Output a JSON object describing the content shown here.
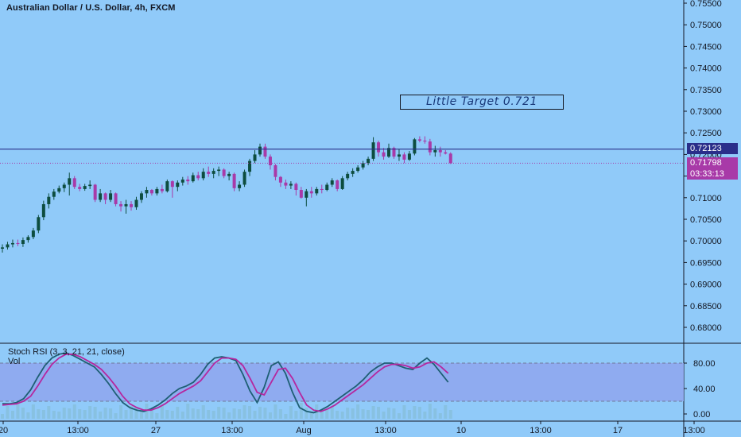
{
  "header": {
    "title": "Australian Dollar / U.S. Dollar, 4h, FXCM"
  },
  "annotation": {
    "text": "Little Target 0.721"
  },
  "indicator": {
    "title": "Stoch RSI (3, 3, 21, 21, close)",
    "vol_label": "Vol"
  },
  "price_tags": {
    "horizontal_line": "0.72123",
    "last_price": "0.71798",
    "countdown": "03:33:13"
  },
  "colors": {
    "background": "#90caf9",
    "up_candle": "#0d4d3f",
    "down_candle": "#a83aa8",
    "line": "#2a2e8a",
    "k_line": "#1e5f74",
    "d_line": "#b5279f",
    "band": "#8fa6ee"
  },
  "chart_data": [
    {
      "type": "candlestick",
      "title": "Australian Dollar / U.S. Dollar, 4h, FXCM",
      "ylim": [
        0.6775,
        0.756
      ],
      "y_ticks": [
        "0.75500",
        "0.75000",
        "0.74500",
        "0.74000",
        "0.73500",
        "0.73000",
        "0.72500",
        "0.72000",
        "0.71500",
        "0.71000",
        "0.70500",
        "0.70000",
        "0.69500",
        "0.69000",
        "0.68500",
        "0.68000"
      ],
      "x_ticks": [
        "20",
        "13:00",
        "27",
        "13:00",
        "Aug",
        "13:00",
        "10",
        "13:00",
        "17",
        "13:00"
      ],
      "horizontal_line": 0.72123,
      "last_price": 0.71798,
      "series": [
        {
          "o": 0.6982,
          "h": 0.6992,
          "l": 0.6973,
          "c": 0.6985
        },
        {
          "o": 0.6985,
          "h": 0.6998,
          "l": 0.698,
          "c": 0.6992
        },
        {
          "o": 0.6992,
          "h": 0.7003,
          "l": 0.6985,
          "c": 0.6995
        },
        {
          "o": 0.6995,
          "h": 0.7003,
          "l": 0.6988,
          "c": 0.6993
        },
        {
          "o": 0.6993,
          "h": 0.7008,
          "l": 0.6986,
          "c": 0.7002
        },
        {
          "o": 0.7002,
          "h": 0.7013,
          "l": 0.6996,
          "c": 0.7009
        },
        {
          "o": 0.7009,
          "h": 0.703,
          "l": 0.7004,
          "c": 0.7024
        },
        {
          "o": 0.7024,
          "h": 0.706,
          "l": 0.7018,
          "c": 0.7055
        },
        {
          "o": 0.7055,
          "h": 0.7093,
          "l": 0.7048,
          "c": 0.7085
        },
        {
          "o": 0.7085,
          "h": 0.711,
          "l": 0.7075,
          "c": 0.7102
        },
        {
          "o": 0.7102,
          "h": 0.712,
          "l": 0.7095,
          "c": 0.7114
        },
        {
          "o": 0.7114,
          "h": 0.7128,
          "l": 0.711,
          "c": 0.7122
        },
        {
          "o": 0.7122,
          "h": 0.7135,
          "l": 0.7113,
          "c": 0.713
        },
        {
          "o": 0.713,
          "h": 0.7158,
          "l": 0.7105,
          "c": 0.7145
        },
        {
          "o": 0.7145,
          "h": 0.715,
          "l": 0.712,
          "c": 0.7125
        },
        {
          "o": 0.7125,
          "h": 0.7132,
          "l": 0.7115,
          "c": 0.712
        },
        {
          "o": 0.712,
          "h": 0.7132,
          "l": 0.7116,
          "c": 0.7127
        },
        {
          "o": 0.7127,
          "h": 0.714,
          "l": 0.712,
          "c": 0.713
        },
        {
          "o": 0.713,
          "h": 0.7132,
          "l": 0.709,
          "c": 0.7095
        },
        {
          "o": 0.7095,
          "h": 0.712,
          "l": 0.709,
          "c": 0.711
        },
        {
          "o": 0.711,
          "h": 0.7112,
          "l": 0.7085,
          "c": 0.7095
        },
        {
          "o": 0.7095,
          "h": 0.7118,
          "l": 0.709,
          "c": 0.711
        },
        {
          "o": 0.711,
          "h": 0.7112,
          "l": 0.708,
          "c": 0.7085
        },
        {
          "o": 0.7085,
          "h": 0.7092,
          "l": 0.7068,
          "c": 0.708
        },
        {
          "o": 0.708,
          "h": 0.7095,
          "l": 0.7063,
          "c": 0.7085
        },
        {
          "o": 0.7085,
          "h": 0.7092,
          "l": 0.707,
          "c": 0.7078
        },
        {
          "o": 0.7078,
          "h": 0.7102,
          "l": 0.7072,
          "c": 0.7095
        },
        {
          "o": 0.7095,
          "h": 0.7115,
          "l": 0.7088,
          "c": 0.711
        },
        {
          "o": 0.711,
          "h": 0.7125,
          "l": 0.71,
          "c": 0.7118
        },
        {
          "o": 0.7118,
          "h": 0.712,
          "l": 0.7105,
          "c": 0.711
        },
        {
          "o": 0.711,
          "h": 0.7125,
          "l": 0.7105,
          "c": 0.712
        },
        {
          "o": 0.712,
          "h": 0.713,
          "l": 0.711,
          "c": 0.7115
        },
        {
          "o": 0.7115,
          "h": 0.7142,
          "l": 0.7112,
          "c": 0.7138
        },
        {
          "o": 0.7138,
          "h": 0.714,
          "l": 0.71,
          "c": 0.7125
        },
        {
          "o": 0.7125,
          "h": 0.714,
          "l": 0.7115,
          "c": 0.7135
        },
        {
          "o": 0.7135,
          "h": 0.7148,
          "l": 0.7128,
          "c": 0.7142
        },
        {
          "o": 0.7142,
          "h": 0.715,
          "l": 0.713,
          "c": 0.7138
        },
        {
          "o": 0.7138,
          "h": 0.7158,
          "l": 0.7135,
          "c": 0.7152
        },
        {
          "o": 0.7152,
          "h": 0.716,
          "l": 0.714,
          "c": 0.7145
        },
        {
          "o": 0.7145,
          "h": 0.7168,
          "l": 0.714,
          "c": 0.716
        },
        {
          "o": 0.716,
          "h": 0.7172,
          "l": 0.7148,
          "c": 0.7155
        },
        {
          "o": 0.7155,
          "h": 0.7168,
          "l": 0.7145,
          "c": 0.7162
        },
        {
          "o": 0.7162,
          "h": 0.7172,
          "l": 0.715,
          "c": 0.7165
        },
        {
          "o": 0.7165,
          "h": 0.7168,
          "l": 0.7145,
          "c": 0.715
        },
        {
          "o": 0.715,
          "h": 0.716,
          "l": 0.714,
          "c": 0.7155
        },
        {
          "o": 0.7155,
          "h": 0.7158,
          "l": 0.7115,
          "c": 0.7122
        },
        {
          "o": 0.7122,
          "h": 0.7138,
          "l": 0.7115,
          "c": 0.713
        },
        {
          "o": 0.713,
          "h": 0.7165,
          "l": 0.7125,
          "c": 0.716
        },
        {
          "o": 0.716,
          "h": 0.719,
          "l": 0.715,
          "c": 0.7185
        },
        {
          "o": 0.7185,
          "h": 0.721,
          "l": 0.718,
          "c": 0.72
        },
        {
          "o": 0.72,
          "h": 0.7225,
          "l": 0.7195,
          "c": 0.7218
        },
        {
          "o": 0.7218,
          "h": 0.7225,
          "l": 0.719,
          "c": 0.7195
        },
        {
          "o": 0.7195,
          "h": 0.72,
          "l": 0.7165,
          "c": 0.7175
        },
        {
          "o": 0.7175,
          "h": 0.7178,
          "l": 0.714,
          "c": 0.7148
        },
        {
          "o": 0.7148,
          "h": 0.715,
          "l": 0.7125,
          "c": 0.7135
        },
        {
          "o": 0.7135,
          "h": 0.7142,
          "l": 0.712,
          "c": 0.7128
        },
        {
          "o": 0.7128,
          "h": 0.7138,
          "l": 0.712,
          "c": 0.7132
        },
        {
          "o": 0.7132,
          "h": 0.7135,
          "l": 0.7105,
          "c": 0.7118
        },
        {
          "o": 0.7118,
          "h": 0.7125,
          "l": 0.7098,
          "c": 0.71
        },
        {
          "o": 0.71,
          "h": 0.712,
          "l": 0.708,
          "c": 0.7115
        },
        {
          "o": 0.7115,
          "h": 0.7125,
          "l": 0.71,
          "c": 0.711
        },
        {
          "o": 0.711,
          "h": 0.7125,
          "l": 0.7105,
          "c": 0.712
        },
        {
          "o": 0.712,
          "h": 0.713,
          "l": 0.711,
          "c": 0.7118
        },
        {
          "o": 0.7118,
          "h": 0.7135,
          "l": 0.7115,
          "c": 0.713
        },
        {
          "o": 0.713,
          "h": 0.7145,
          "l": 0.7125,
          "c": 0.714
        },
        {
          "o": 0.714,
          "h": 0.7142,
          "l": 0.7115,
          "c": 0.712
        },
        {
          "o": 0.712,
          "h": 0.715,
          "l": 0.7118,
          "c": 0.7145
        },
        {
          "o": 0.7145,
          "h": 0.716,
          "l": 0.714,
          "c": 0.7155
        },
        {
          "o": 0.7155,
          "h": 0.7168,
          "l": 0.7148,
          "c": 0.7162
        },
        {
          "o": 0.7162,
          "h": 0.7175,
          "l": 0.7158,
          "c": 0.717
        },
        {
          "o": 0.717,
          "h": 0.7185,
          "l": 0.7165,
          "c": 0.718
        },
        {
          "o": 0.718,
          "h": 0.7195,
          "l": 0.7175,
          "c": 0.719
        },
        {
          "o": 0.719,
          "h": 0.724,
          "l": 0.7185,
          "c": 0.7228
        },
        {
          "o": 0.7228,
          "h": 0.7232,
          "l": 0.7195,
          "c": 0.7205
        },
        {
          "o": 0.7205,
          "h": 0.7215,
          "l": 0.7188,
          "c": 0.7195
        },
        {
          "o": 0.7195,
          "h": 0.7225,
          "l": 0.7192,
          "c": 0.7215
        },
        {
          "o": 0.7215,
          "h": 0.7218,
          "l": 0.719,
          "c": 0.7195
        },
        {
          "o": 0.7195,
          "h": 0.7212,
          "l": 0.7185,
          "c": 0.72
        },
        {
          "o": 0.72,
          "h": 0.7205,
          "l": 0.718,
          "c": 0.7188
        },
        {
          "o": 0.7188,
          "h": 0.7208,
          "l": 0.7185,
          "c": 0.7202
        },
        {
          "o": 0.7202,
          "h": 0.7238,
          "l": 0.7198,
          "c": 0.7235
        },
        {
          "o": 0.7235,
          "h": 0.7242,
          "l": 0.7228,
          "c": 0.7232
        },
        {
          "o": 0.7232,
          "h": 0.7242,
          "l": 0.7225,
          "c": 0.723
        },
        {
          "o": 0.723,
          "h": 0.7236,
          "l": 0.7198,
          "c": 0.7205
        },
        {
          "o": 0.7205,
          "h": 0.722,
          "l": 0.7195,
          "c": 0.721
        },
        {
          "o": 0.721,
          "h": 0.7218,
          "l": 0.7195,
          "c": 0.7205
        },
        {
          "o": 0.7205,
          "h": 0.721,
          "l": 0.72,
          "c": 0.7202
        },
        {
          "o": 0.7202,
          "h": 0.7205,
          "l": 0.7178,
          "c": 0.71798
        }
      ]
    },
    {
      "type": "line",
      "title": "Stoch RSI (3, 3, 21, 21, close)",
      "ylim": [
        -9,
        100
      ],
      "y_ticks": [
        "80.00",
        "40.00",
        "0.00"
      ],
      "band": [
        20,
        80
      ],
      "series": [
        {
          "name": "K",
          "values": [
            16,
            16,
            18,
            24,
            38,
            58,
            76,
            88,
            94,
            96,
            92,
            86,
            80,
            74,
            62,
            48,
            32,
            18,
            10,
            6,
            4,
            8,
            14,
            22,
            32,
            40,
            44,
            50,
            62,
            78,
            88,
            90,
            88,
            84,
            62,
            36,
            18,
            42,
            76,
            82,
            64,
            34,
            10,
            4,
            2,
            6,
            12,
            20,
            28,
            36,
            44,
            54,
            66,
            74,
            80,
            80,
            76,
            72,
            70,
            80,
            88,
            78,
            64,
            50
          ]
        },
        {
          "name": "D",
          "values": [
            14,
            15,
            16,
            20,
            28,
            44,
            62,
            78,
            88,
            94,
            94,
            90,
            84,
            78,
            70,
            58,
            44,
            28,
            16,
            10,
            6,
            6,
            10,
            16,
            24,
            32,
            38,
            44,
            52,
            66,
            80,
            88,
            88,
            86,
            76,
            56,
            34,
            30,
            50,
            70,
            72,
            56,
            34,
            14,
            6,
            4,
            8,
            14,
            22,
            30,
            38,
            46,
            56,
            66,
            74,
            78,
            78,
            76,
            72,
            74,
            80,
            82,
            74,
            64
          ]
        }
      ]
    }
  ]
}
